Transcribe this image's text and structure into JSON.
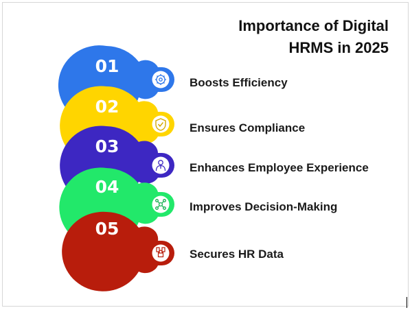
{
  "title": {
    "line1": "Importance of Digital",
    "line2": "HRMS in 2025"
  },
  "steps": [
    {
      "number": "01",
      "label": "Boosts Efficiency",
      "color": "#2e77ea",
      "icon": "gear-brain-icon"
    },
    {
      "number": "02",
      "label": "Ensures Compliance",
      "color": "#ffd500",
      "icon": "shield-check-icon"
    },
    {
      "number": "03",
      "label": "Enhances Employee Experience",
      "color": "#3d27c2",
      "icon": "employee-badge-icon"
    },
    {
      "number": "04",
      "label": "Improves Decision-Making",
      "color": "#22e86a",
      "icon": "decision-network-icon"
    },
    {
      "number": "05",
      "label": "Secures HR Data",
      "color": "#b81d0c",
      "icon": "data-lock-icon"
    }
  ]
}
